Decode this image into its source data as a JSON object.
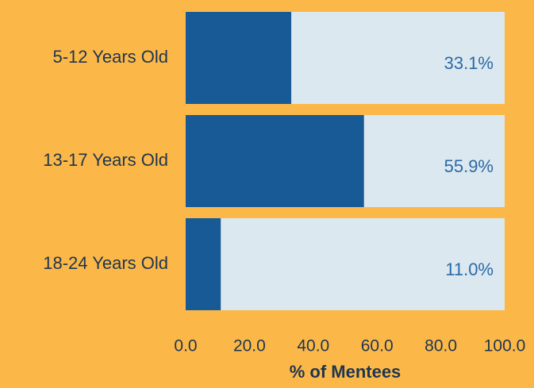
{
  "chart_data": {
    "type": "hbar",
    "categories": [
      "5-12 Years Old",
      "13-17 Years Old",
      "18-24 Years Old"
    ],
    "values": [
      33.1,
      55.9,
      11.0
    ],
    "value_labels": [
      "33.1%",
      "55.9%",
      "11.0%"
    ],
    "color": "#175a96",
    "xlabel": "% of Mentees",
    "xlim": [
      0,
      100
    ],
    "xticks": [
      {
        "value": 0,
        "label": "0.0"
      },
      {
        "value": 20,
        "label": "20.0"
      },
      {
        "value": 40,
        "label": "40.0"
      },
      {
        "value": 60,
        "label": "60.0"
      },
      {
        "value": 80,
        "label": "80.0"
      },
      {
        "value": 100,
        "label": "100.0"
      }
    ],
    "grid": false
  }
}
